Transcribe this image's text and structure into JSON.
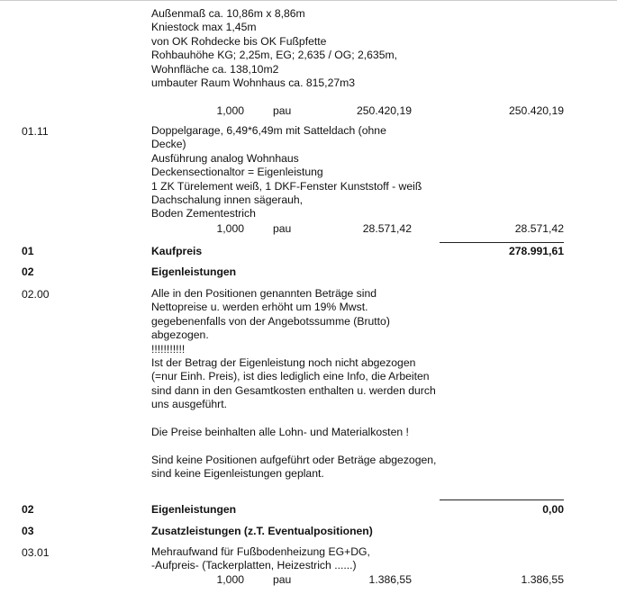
{
  "items": [
    {
      "id": "",
      "description": [
        "Außenmaß ca. 10,86m x 8,86m",
        "Kniestock max 1,45m",
        "von OK Rohdecke bis OK Fußpfette",
        "Rohbauhöhe KG; 2,25m, EG; 2,635  / OG; 2,635m,",
        "Wohnfläche ca. 138,10m2",
        "umbauter Raum Wohnhaus ca. 815,27m3"
      ],
      "quantity": "1,000",
      "unit": "pau",
      "unit_price": "250.420,19",
      "total": "250.420,19"
    },
    {
      "id": "01.11",
      "description": [
        "Doppelgarage, 6,49*6,49m mit Satteldach (ohne",
        "Decke)",
        "Ausführung analog Wohnhaus",
        "Deckensectionaltor = Eigenleistung",
        "1 ZK Türelement weiß, 1 DKF-Fenster Kunststoff - weiß",
        "Dachschalung innen sägerauh,",
        "Boden Zementestrich"
      ],
      "quantity": "1,000",
      "unit": "pau",
      "unit_price": "28.571,42",
      "total": "28.571,42"
    },
    {
      "id": "02.00",
      "description": [
        "Alle in den Positionen genannten Beträge sind",
        "Nettopreise u. werden erhöht um 19% Mwst.",
        "gegebenenfalls von der Angebotssumme (Brutto)",
        "abgezogen.",
        "!!!!!!!!!!!",
        "Ist der Betrag der Eigenleistung noch nicht abgezogen",
        "(=nur Einh. Preis), ist dies lediglich eine Info, die Arbeiten",
        "sind dann in den Gesamtkosten enthalten u. werden durch",
        "uns ausgeführt.",
        "",
        "Die Preise beinhalten alle Lohn- und Materialkosten !",
        "",
        "Sind keine Positionen aufgeführt oder Beträge abgezogen,",
        "sind keine Eigenleistungen geplant."
      ]
    },
    {
      "id": "03.01",
      "description": [
        "Mehraufwand für Fußbodenheizung EG+DG,",
        "-Aufpreis- (Tackerplatten, Heizestrich ......)"
      ],
      "quantity": "1,000",
      "unit": "pau",
      "unit_price": "1.386,55",
      "total": "1.386,55"
    }
  ],
  "sections": {
    "s01_total": {
      "id": "01",
      "title": "Kaufpreis",
      "total": "278.991,61"
    },
    "s02_head": {
      "id": "02",
      "title": "Eigenleistungen"
    },
    "s02_total": {
      "id": "02",
      "title": "Eigenleistungen",
      "total": "0,00"
    },
    "s03_head": {
      "id": "03",
      "title": "Zusatzleistungen (z.T. Eventualpositionen)"
    }
  }
}
